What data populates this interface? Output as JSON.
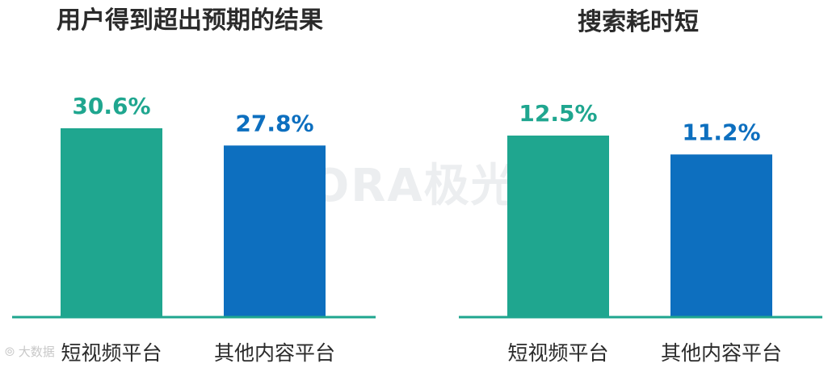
{
  "watermark": "URORA极光",
  "corner_logo": "大数据",
  "colors": {
    "short_video": "#1fa68f",
    "other": "#0d6fbf",
    "axis": "#1fa68f",
    "title": "#2b2b2b",
    "category": "#2b2b2b"
  },
  "chart_data": [
    {
      "type": "bar",
      "title": "用户得到超出预期的结果",
      "categories": [
        "短视频平台",
        "其他内容平台"
      ],
      "values": [
        30.6,
        27.8
      ],
      "value_labels": [
        "30.6%",
        "27.8%"
      ],
      "ylim": [
        0,
        40
      ]
    },
    {
      "type": "bar",
      "title": "搜索耗时短",
      "categories": [
        "短视频平台",
        "其他内容平台"
      ],
      "values": [
        12.5,
        11.2
      ],
      "value_labels": [
        "12.5%",
        "11.2%"
      ],
      "ylim": [
        0,
        17
      ]
    }
  ]
}
